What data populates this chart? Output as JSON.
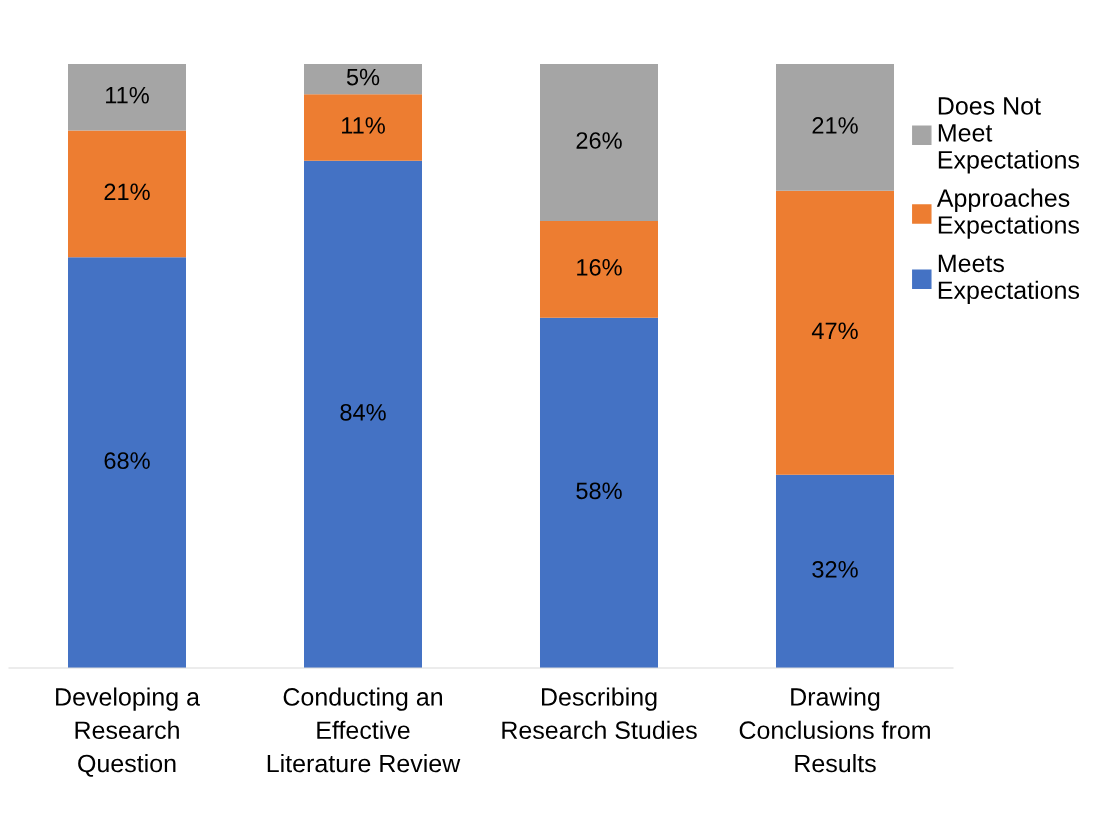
{
  "chart_data": {
    "type": "bar",
    "stacked": true,
    "categories": [
      "Developing a\nResearch\nQuestion",
      "Conducting an\nEffective\nLiterature Review",
      "Describing\nResearch Studies",
      "Drawing\nConclusions from\nResults"
    ],
    "series": [
      {
        "name": "Meets\nExpectations",
        "color": "#4472c4",
        "values": [
          68,
          84,
          58,
          32
        ],
        "value_labels": [
          "68%",
          "84%",
          "58%",
          "32%"
        ]
      },
      {
        "name": "Approaches\nExpectations",
        "color": "#ed7d31",
        "values": [
          21,
          11,
          16,
          47
        ],
        "value_labels": [
          "21%",
          "11%",
          "16%",
          "47%"
        ]
      },
      {
        "name": "Does Not\nMeet\nExpectations",
        "color": "#a5a5a5",
        "values": [
          11,
          5,
          26,
          21
        ],
        "value_labels": [
          "11%",
          "5%",
          "26%",
          "21%"
        ]
      }
    ],
    "ylim": [
      0,
      100
    ],
    "legend": "right",
    "grid": false
  }
}
